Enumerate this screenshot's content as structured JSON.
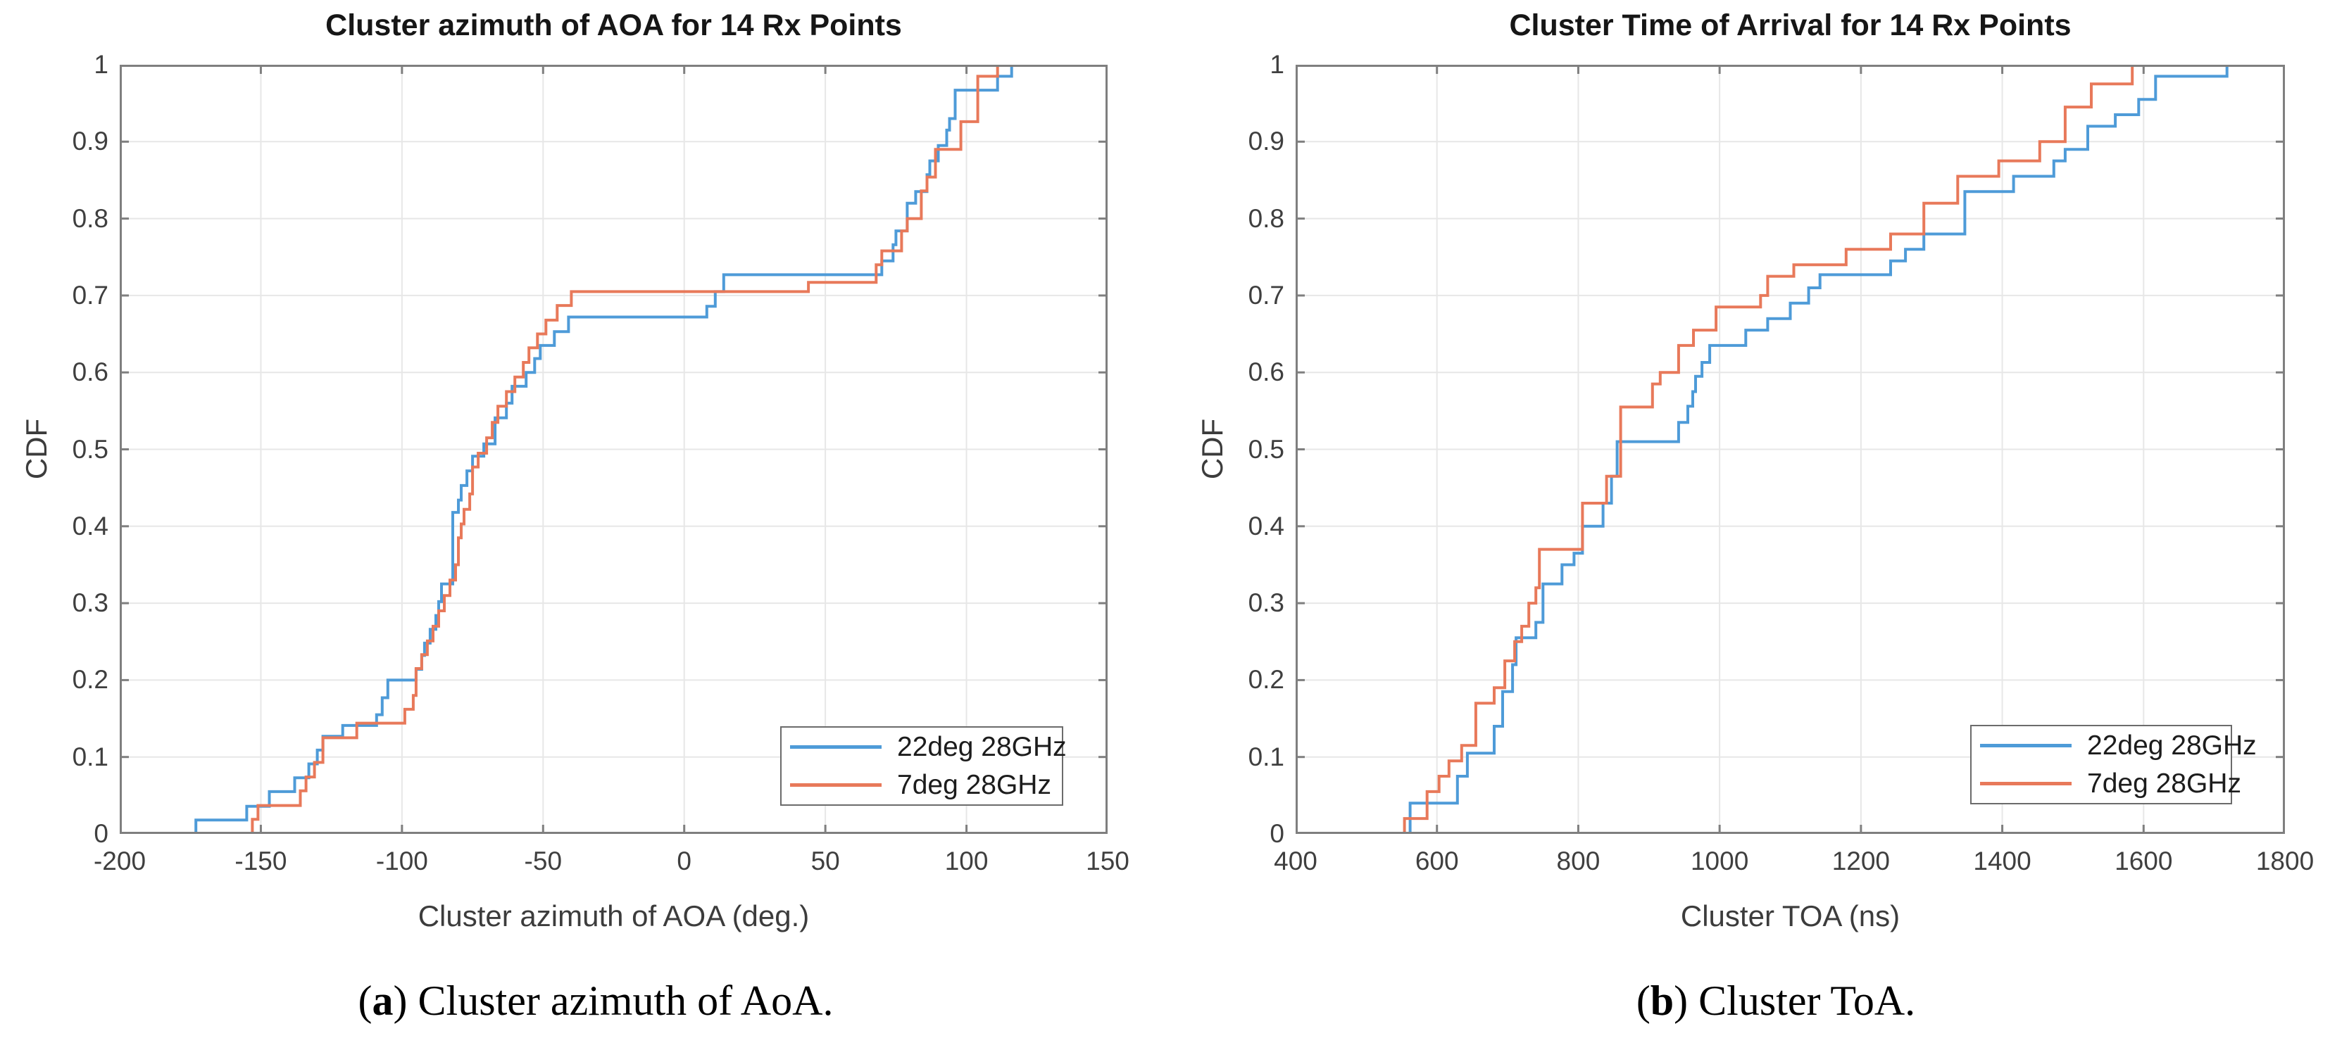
{
  "figure": {
    "background": "#ffffff",
    "captions": [
      {
        "prefix": "(",
        "marker": "a",
        "suffix": ")",
        "text": " Cluster azimuth of AoA."
      },
      {
        "prefix": "(",
        "marker": "b",
        "suffix": ")",
        "text": " Cluster ToA."
      }
    ]
  },
  "palette": {
    "series_blue": "#4E9BD8",
    "series_orange": "#E8795A",
    "grid": "#e7e7e7",
    "axis_box": "#7f7f7f",
    "tick_text": "#3f3f3f",
    "title_text": "#161616"
  },
  "chart_data": [
    {
      "type": "line",
      "subtype": "empirical-cdf-step",
      "title": "Cluster azimuth of AOA for 14 Rx Points",
      "xlabel": "Cluster azimuth of AOA (deg.)",
      "ylabel": "CDF",
      "xlim": [
        -200,
        150
      ],
      "ylim": [
        0,
        1
      ],
      "xticks": [
        -200,
        -150,
        -100,
        -50,
        0,
        50,
        100,
        150
      ],
      "xtick_labels": [
        "-200",
        "-150",
        "-100",
        "-50",
        "0",
        "50",
        "100",
        "150"
      ],
      "ytick_labels": [
        "0",
        "0.1",
        "0.2",
        "0.3",
        "0.4",
        "0.5",
        "0.6",
        "0.7",
        "0.8",
        "0.9",
        "1"
      ],
      "grid": true,
      "legend_position": "southeast",
      "series": [
        {
          "name": "22deg 28GHz",
          "color": "#4E9BD8",
          "points": [
            [
              -173,
              0.018
            ],
            [
              -155,
              0.036
            ],
            [
              -147,
              0.055
            ],
            [
              -138,
              0.073
            ],
            [
              -133,
              0.091
            ],
            [
              -130,
              0.109
            ],
            [
              -128,
              0.127
            ],
            [
              -121,
              0.141
            ],
            [
              -109,
              0.155
            ],
            [
              -107,
              0.177
            ],
            [
              -105,
              0.2
            ],
            [
              -95,
              0.214
            ],
            [
              -93,
              0.232
            ],
            [
              -92,
              0.248
            ],
            [
              -90,
              0.266
            ],
            [
              -88,
              0.284
            ],
            [
              -87,
              0.302
            ],
            [
              -86,
              0.325
            ],
            [
              -82,
              0.418
            ],
            [
              -80,
              0.434
            ],
            [
              -79,
              0.453
            ],
            [
              -77,
              0.472
            ],
            [
              -75,
              0.491
            ],
            [
              -71,
              0.507
            ],
            [
              -67,
              0.541
            ],
            [
              -63,
              0.56
            ],
            [
              -61,
              0.582
            ],
            [
              -56,
              0.6
            ],
            [
              -53,
              0.618
            ],
            [
              -51,
              0.635
            ],
            [
              -46,
              0.653
            ],
            [
              -41,
              0.672
            ],
            [
              8,
              0.686
            ],
            [
              11,
              0.705
            ],
            [
              14,
              0.727
            ],
            [
              70,
              0.745
            ],
            [
              74,
              0.766
            ],
            [
              75,
              0.784
            ],
            [
              79,
              0.82
            ],
            [
              82,
              0.835
            ],
            [
              86,
              0.857
            ],
            [
              87,
              0.875
            ],
            [
              90,
              0.895
            ],
            [
              93,
              0.915
            ],
            [
              94,
              0.93
            ],
            [
              96,
              0.967
            ],
            [
              111,
              0.985
            ],
            [
              116,
              1
            ]
          ]
        },
        {
          "name": "7deg 28GHz",
          "color": "#E8795A",
          "points": [
            [
              -153,
              0.019
            ],
            [
              -151,
              0.037
            ],
            [
              -136,
              0.056
            ],
            [
              -134,
              0.074
            ],
            [
              -131,
              0.093
            ],
            [
              -128,
              0.125
            ],
            [
              -116,
              0.144
            ],
            [
              -99,
              0.162
            ],
            [
              -96,
              0.18
            ],
            [
              -95,
              0.215
            ],
            [
              -93,
              0.233
            ],
            [
              -91,
              0.251
            ],
            [
              -89,
              0.27
            ],
            [
              -87,
              0.29
            ],
            [
              -85,
              0.31
            ],
            [
              -83,
              0.33
            ],
            [
              -81,
              0.35
            ],
            [
              -80,
              0.385
            ],
            [
              -79,
              0.403
            ],
            [
              -78,
              0.422
            ],
            [
              -76,
              0.442
            ],
            [
              -75,
              0.477
            ],
            [
              -73,
              0.495
            ],
            [
              -70,
              0.515
            ],
            [
              -68,
              0.535
            ],
            [
              -66,
              0.556
            ],
            [
              -63,
              0.575
            ],
            [
              -60,
              0.594
            ],
            [
              -57,
              0.613
            ],
            [
              -55,
              0.632
            ],
            [
              -52,
              0.65
            ],
            [
              -49,
              0.668
            ],
            [
              -45,
              0.687
            ],
            [
              -40,
              0.705
            ],
            [
              44,
              0.717
            ],
            [
              68,
              0.74
            ],
            [
              70,
              0.758
            ],
            [
              77,
              0.784
            ],
            [
              79,
              0.8
            ],
            [
              84,
              0.836
            ],
            [
              86,
              0.854
            ],
            [
              89,
              0.89
            ],
            [
              98,
              0.926
            ],
            [
              104,
              0.985
            ],
            [
              111,
              1
            ]
          ]
        }
      ]
    },
    {
      "type": "line",
      "subtype": "empirical-cdf-step",
      "title": "Cluster Time of Arrival for 14 Rx Points",
      "xlabel": "Cluster TOA (ns)",
      "ylabel": "CDF",
      "xlim": [
        400,
        1800
      ],
      "ylim": [
        0,
        1
      ],
      "xticks": [
        400,
        600,
        800,
        1000,
        1200,
        1400,
        1600,
        1800
      ],
      "xtick_labels": [
        "400",
        "600",
        "800",
        "1000",
        "1200",
        "1400",
        "1600",
        "1800"
      ],
      "ytick_labels": [
        "0",
        "0.1",
        "0.2",
        "0.3",
        "0.4",
        "0.5",
        "0.6",
        "0.7",
        "0.8",
        "0.9",
        "1"
      ],
      "grid": true,
      "legend_position": "southeast",
      "series": [
        {
          "name": "22deg 28GHz",
          "color": "#4E9BD8",
          "points": [
            [
              562,
              0.04
            ],
            [
              629,
              0.075
            ],
            [
              643,
              0.105
            ],
            [
              681,
              0.14
            ],
            [
              693,
              0.185
            ],
            [
              707,
              0.22
            ],
            [
              712,
              0.255
            ],
            [
              740,
              0.275
            ],
            [
              750,
              0.325
            ],
            [
              777,
              0.35
            ],
            [
              794,
              0.365
            ],
            [
              806,
              0.4
            ],
            [
              835,
              0.43
            ],
            [
              847,
              0.465
            ],
            [
              855,
              0.51
            ],
            [
              942,
              0.535
            ],
            [
              955,
              0.556
            ],
            [
              962,
              0.575
            ],
            [
              966,
              0.595
            ],
            [
              975,
              0.613
            ],
            [
              986,
              0.635
            ],
            [
              1037,
              0.655
            ],
            [
              1068,
              0.67
            ],
            [
              1100,
              0.69
            ],
            [
              1126,
              0.71
            ],
            [
              1142,
              0.727
            ],
            [
              1242,
              0.745
            ],
            [
              1263,
              0.76
            ],
            [
              1289,
              0.78
            ],
            [
              1347,
              0.835
            ],
            [
              1416,
              0.855
            ],
            [
              1473,
              0.875
            ],
            [
              1489,
              0.89
            ],
            [
              1521,
              0.92
            ],
            [
              1560,
              0.935
            ],
            [
              1593,
              0.955
            ],
            [
              1617,
              0.985
            ],
            [
              1718,
              1
            ]
          ]
        },
        {
          "name": "7deg 28GHz",
          "color": "#E8795A",
          "points": [
            [
              554,
              0.02
            ],
            [
              586,
              0.055
            ],
            [
              603,
              0.075
            ],
            [
              617,
              0.095
            ],
            [
              635,
              0.115
            ],
            [
              655,
              0.17
            ],
            [
              681,
              0.19
            ],
            [
              696,
              0.225
            ],
            [
              710,
              0.25
            ],
            [
              720,
              0.27
            ],
            [
              730,
              0.3
            ],
            [
              740,
              0.32
            ],
            [
              745,
              0.37
            ],
            [
              806,
              0.43
            ],
            [
              840,
              0.465
            ],
            [
              860,
              0.555
            ],
            [
              905,
              0.585
            ],
            [
              916,
              0.6
            ],
            [
              942,
              0.635
            ],
            [
              963,
              0.655
            ],
            [
              995,
              0.685
            ],
            [
              1058,
              0.7
            ],
            [
              1068,
              0.725
            ],
            [
              1105,
              0.74
            ],
            [
              1179,
              0.76
            ],
            [
              1242,
              0.78
            ],
            [
              1289,
              0.82
            ],
            [
              1337,
              0.855
            ],
            [
              1395,
              0.875
            ],
            [
              1453,
              0.9
            ],
            [
              1489,
              0.945
            ],
            [
              1526,
              0.975
            ],
            [
              1584,
              1
            ]
          ]
        }
      ]
    }
  ]
}
